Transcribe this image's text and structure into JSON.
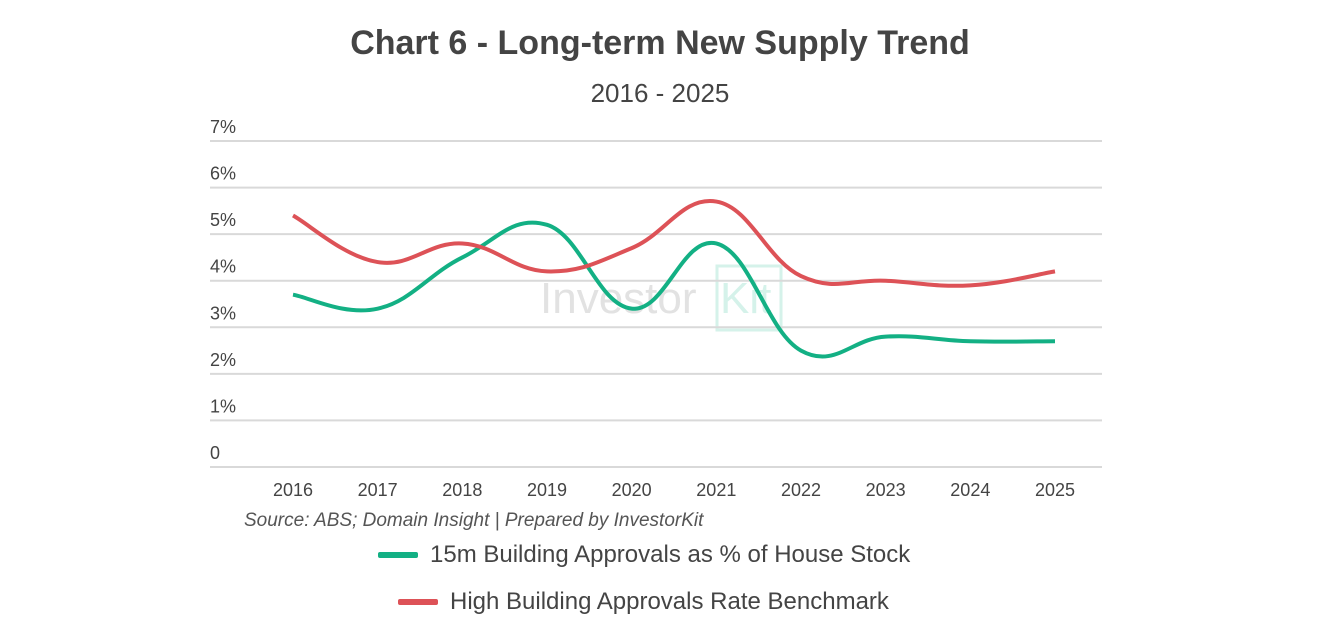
{
  "chart_data": {
    "type": "line",
    "title": "Chart 6 - Long-term New Supply Trend",
    "subtitle": "2016 - 2025",
    "categories": [
      "2016",
      "2017",
      "2018",
      "2019",
      "2020",
      "2021",
      "2022",
      "2023",
      "2024",
      "2025"
    ],
    "y_ticks": [
      "0",
      "1%",
      "2%",
      "3%",
      "4%",
      "5%",
      "6%",
      "7%"
    ],
    "ylim": [
      0,
      7
    ],
    "grid": true,
    "smooth": true,
    "legend_position": "bottom",
    "series": [
      {
        "name": "15m Building Approvals as % of House Stock",
        "color": "#13b084",
        "values": [
          3.7,
          3.4,
          4.5,
          5.2,
          3.4,
          4.8,
          2.5,
          2.8,
          2.7,
          2.7
        ]
      },
      {
        "name": "High Building Approvals Rate Benchmark",
        "color": "#dd5257",
        "values": [
          5.4,
          4.4,
          4.8,
          4.2,
          4.7,
          5.7,
          4.1,
          4.0,
          3.9,
          4.2
        ]
      }
    ],
    "source": "Source: ABS; Domain Insight | Prepared by InvestorKit",
    "watermark": "InvestorKit"
  }
}
